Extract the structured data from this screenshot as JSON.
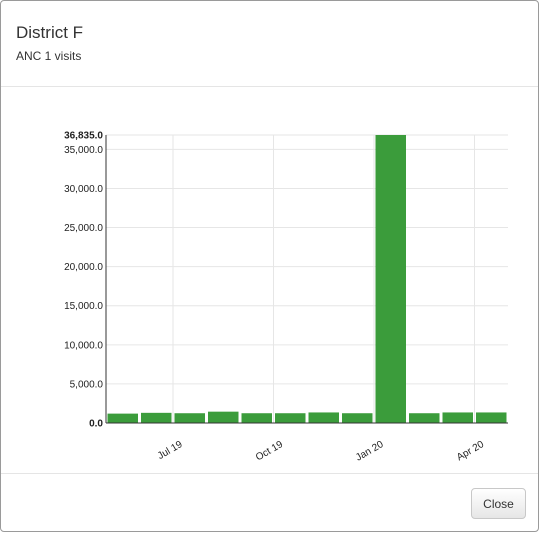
{
  "modal": {
    "title": "District F",
    "subtitle": "ANC 1 visits",
    "close_label": "Close"
  },
  "chart_data": {
    "type": "bar",
    "title": "",
    "xlabel": "",
    "ylabel": "",
    "series": [
      {
        "values": [
          1200,
          1300,
          1250,
          1450,
          1250,
          1250,
          1350,
          1250,
          36835,
          1250,
          1350,
          1350
        ]
      }
    ],
    "ylim": [
      0,
      36835
    ],
    "y_ticks": [
      {
        "value": 0,
        "label": "0.0"
      },
      {
        "value": 5000,
        "label": "5,000.0"
      },
      {
        "value": 10000,
        "label": "10,000.0"
      },
      {
        "value": 15000,
        "label": "15,000.0"
      },
      {
        "value": 20000,
        "label": "20,000.0"
      },
      {
        "value": 25000,
        "label": "25,000.0"
      },
      {
        "value": 30000,
        "label": "30,000.0"
      },
      {
        "value": 35000,
        "label": "35,000.0"
      },
      {
        "value": 36835,
        "label": "36,835.0"
      }
    ],
    "x_ticks": [
      {
        "index": 1.5,
        "label": "Jul 19"
      },
      {
        "index": 4.5,
        "label": "Oct 19"
      },
      {
        "index": 7.5,
        "label": "Jan 20"
      },
      {
        "index": 10.5,
        "label": "Apr 20"
      }
    ],
    "bar_color": "#3b9c3b",
    "grid": true,
    "legend": "none"
  }
}
